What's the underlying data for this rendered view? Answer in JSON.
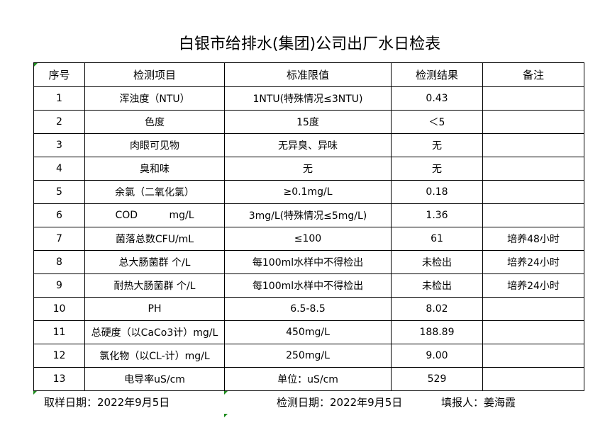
{
  "title": "白银市给排水(集团)公司出厂水日检表",
  "columns": [
    "序号",
    "检测项目",
    "标准限值",
    "检测结果",
    "备注"
  ],
  "rows": [
    [
      "1",
      "浑浊度（NTU）",
      "1NTU(特殊情况≤3NTU)",
      "0.43",
      ""
    ],
    [
      "2",
      "色度",
      "15度",
      "＜5",
      ""
    ],
    [
      "3",
      "肉眼可见物",
      "无异臭、异味",
      "无",
      ""
    ],
    [
      "4",
      "臭和味",
      "无",
      "无",
      ""
    ],
    [
      "5",
      "余氯（二氧化氯）",
      "≥0.1mg/L",
      "0.18",
      ""
    ],
    [
      "6",
      "COD          mg/L",
      "3mg/L(特殊情况≤5mg/L)",
      "1.36",
      ""
    ],
    [
      "7",
      "菌落总数CFU/mL",
      "≤100",
      "61",
      "培养48小时"
    ],
    [
      "8",
      "总大肠菌群 个/L",
      "每100ml水样中不得检出",
      "未检出",
      "培养24小时"
    ],
    [
      "9",
      "耐热大肠菌群 个/L",
      "每100ml水样中不得检出",
      "未检出",
      "培养24小时"
    ],
    [
      "10",
      "PH",
      "6.5-8.5",
      "8.02",
      ""
    ],
    [
      "11",
      "总硬度（以CaCo3计）mg/L",
      "450mg/L",
      "188.89",
      ""
    ],
    [
      "12",
      "氯化物（以CL-计）mg/L",
      "250mg/L",
      "9.00",
      ""
    ],
    [
      "13",
      "电导率uS/cm",
      "单位：uS/cm",
      "529",
      ""
    ]
  ],
  "footer": {
    "sample_date": "取样日期：2022年9月5日",
    "test_date": "检测日期：2022年9月5日",
    "reporter": "填报人：姜海霞"
  }
}
